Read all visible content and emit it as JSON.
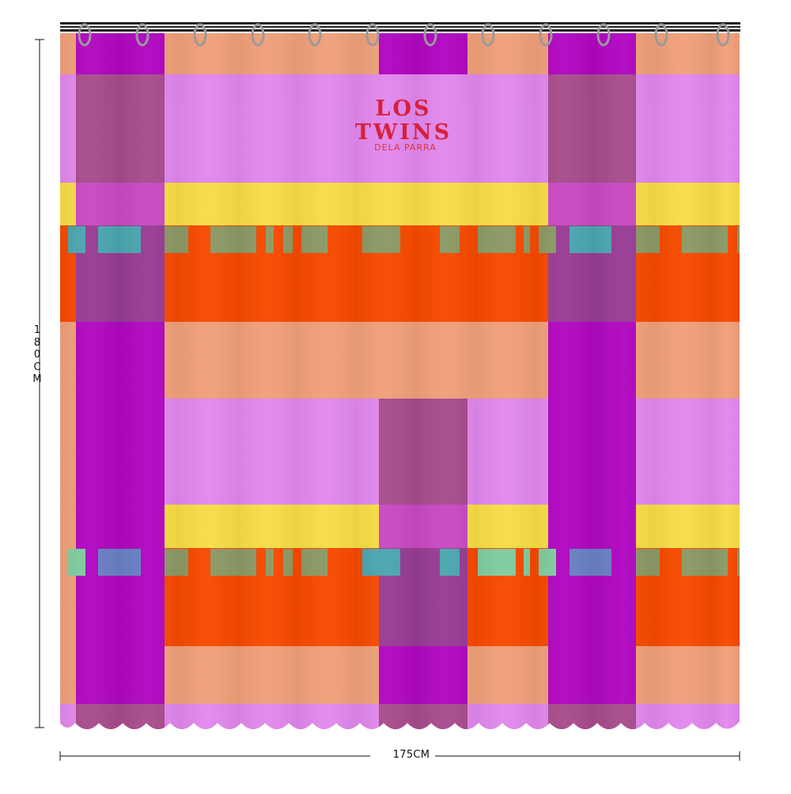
{
  "dimensions": {
    "height_label": "180CM",
    "width_label": "175CM"
  },
  "logo": {
    "line1": "LOS",
    "line2": "TWINS",
    "line3": "DELA PARRA"
  },
  "palette": {
    "peach": "#f0a07a",
    "purple": "#b008c0",
    "pink": "#e188ee",
    "yellow": "#f8dc46",
    "orange": "#f64a00",
    "mauve": "#a84c8c",
    "magenta": "#c84ac2",
    "plum": "#983c94",
    "olive": "#8c9a66",
    "teal": "#4ca6b0",
    "mint": "#80cca0",
    "blue": "#6a80c4",
    "logo_red": "#d6203a"
  }
}
